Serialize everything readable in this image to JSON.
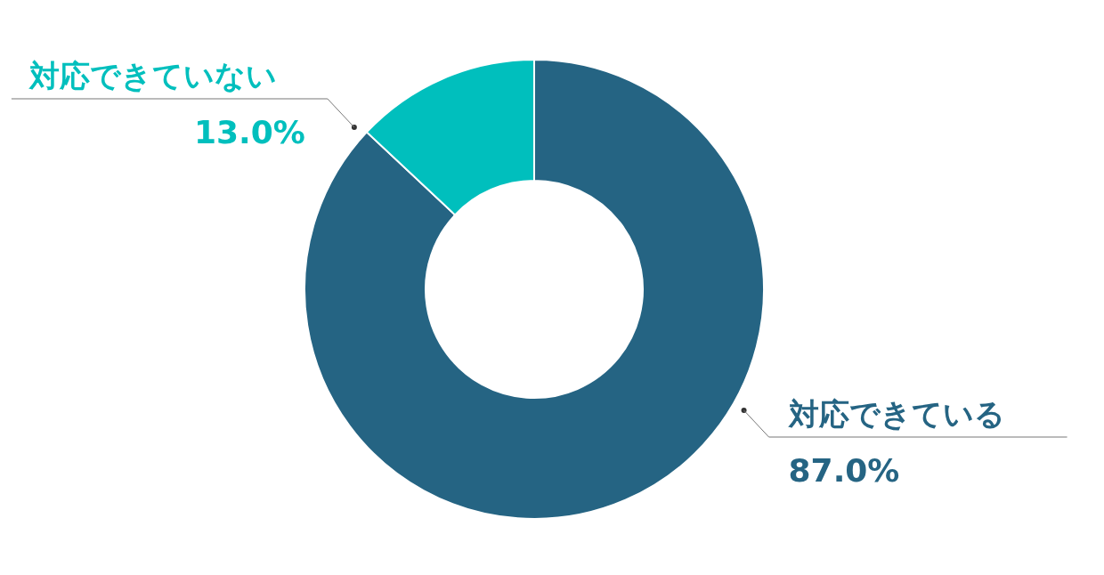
{
  "chart_data": {
    "type": "donut",
    "categories": [
      "対応できている",
      "対応できていない"
    ],
    "values": [
      87.0,
      13.0
    ],
    "colors": [
      "#256483",
      "#00bfbd"
    ],
    "value_labels": [
      "87.0%",
      "13.0%"
    ]
  }
}
